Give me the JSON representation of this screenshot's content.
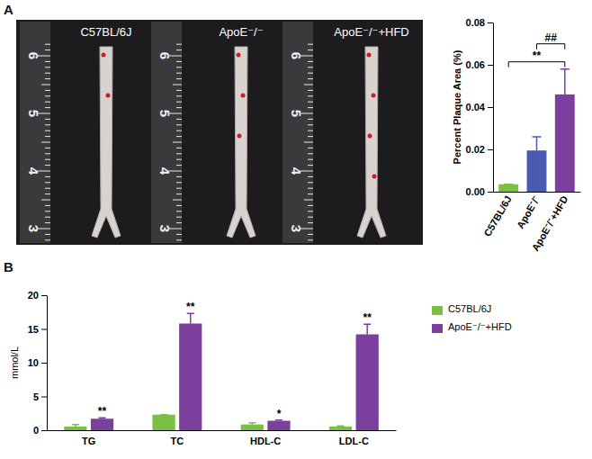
{
  "panel_labels": [
    "A",
    "B"
  ],
  "photo": {
    "labels": [
      "C57BL/6J",
      "ApoE⁻/⁻",
      "ApoE⁻/⁻+HFD"
    ],
    "ruler_ticks": [
      6,
      5,
      4,
      3
    ]
  },
  "chart_data": [
    {
      "type": "bar",
      "ylabel": "Percent Plaque Area (%)",
      "categories": [
        "C57BL/6J",
        "ApoE⁻/⁻",
        "ApoE⁻/⁻+HFD"
      ],
      "values": [
        0.0035,
        0.0195,
        0.046
      ],
      "errors": [
        0,
        0.0065,
        0.012
      ],
      "colors": [
        "#7ac143",
        "#4a5cb0",
        "#7b3f9e"
      ],
      "ylim": [
        0,
        0.08
      ],
      "yticks": [
        {
          "value": 0,
          "label": "0.00"
        },
        {
          "value": 0.02,
          "label": "0.02"
        },
        {
          "value": 0.04,
          "label": "0.04"
        },
        {
          "value": 0.06,
          "label": "0.06"
        },
        {
          "value": 0.08,
          "label": "0.08"
        }
      ],
      "annotations": [
        {
          "text": "**",
          "between": [
            "C57BL/6J",
            "ApoE⁻/⁻+HFD"
          ]
        },
        {
          "text": "##",
          "between": [
            "ApoE⁻/⁻",
            "ApoE⁻/⁻+HFD"
          ]
        }
      ]
    },
    {
      "type": "bar",
      "ylabel": "mmol/L",
      "categories": [
        "TG",
        "TC",
        "HDL-C",
        "LDL-C"
      ],
      "series": [
        {
          "name": "C57BL/6J",
          "color": "#7ac143",
          "values": [
            0.55,
            2.3,
            0.85,
            0.55
          ],
          "errors": [
            0.3,
            0,
            0.25,
            0.1
          ]
        },
        {
          "name": "ApoE⁻/⁻+HFD",
          "color": "#7b3f9e",
          "values": [
            1.7,
            15.8,
            1.4,
            14.2
          ],
          "errors": [
            0.15,
            1.5,
            0.1,
            1.5
          ]
        }
      ],
      "ylim": [
        0,
        20
      ],
      "yticks": [
        0,
        5,
        10,
        15,
        20
      ],
      "legend": "right",
      "annotations": [
        {
          "text": "**",
          "category": "TG"
        },
        {
          "text": "**",
          "category": "TC"
        },
        {
          "text": "*",
          "category": "HDL-C"
        },
        {
          "text": "**",
          "category": "LDL-C"
        }
      ]
    }
  ]
}
